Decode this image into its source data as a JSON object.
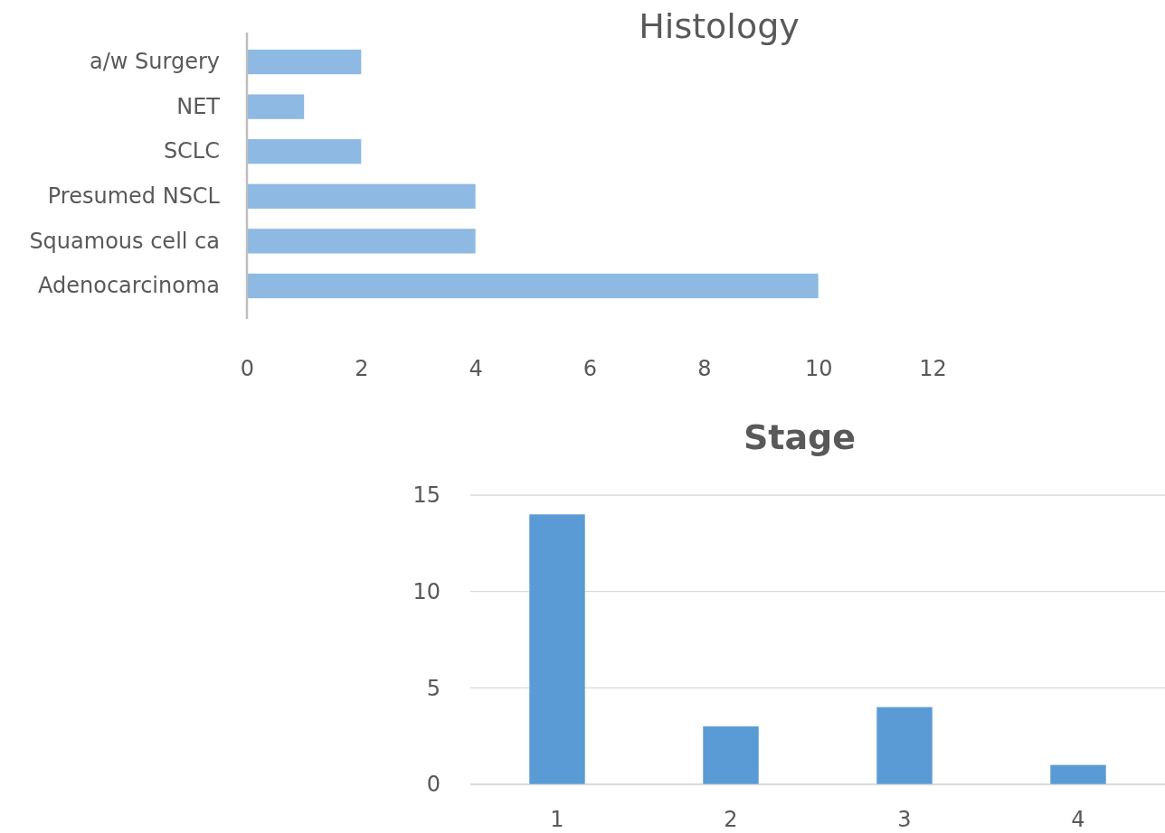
{
  "chart_data": [
    {
      "type": "bar",
      "title": "Histology",
      "orientation": "horizontal",
      "categories": [
        "a/w Surgery",
        "NET",
        "SCLC",
        "Presumed NSCL",
        "Squamous cell ca",
        "Adenocarcinoma"
      ],
      "values": [
        2,
        1,
        2,
        4,
        4,
        10
      ],
      "color": "#8db9e2",
      "xlim": [
        0,
        12
      ],
      "xticks": [
        0,
        2,
        4,
        6,
        8,
        10,
        12
      ],
      "grid": false
    },
    {
      "type": "bar",
      "title": "Stage",
      "categories": [
        "1",
        "2",
        "3",
        "4"
      ],
      "values": [
        14,
        3,
        4,
        1
      ],
      "color": "#5b9bd5",
      "ylim": [
        0,
        15
      ],
      "yticks": [
        0,
        5,
        10,
        15
      ],
      "grid": "y"
    }
  ]
}
